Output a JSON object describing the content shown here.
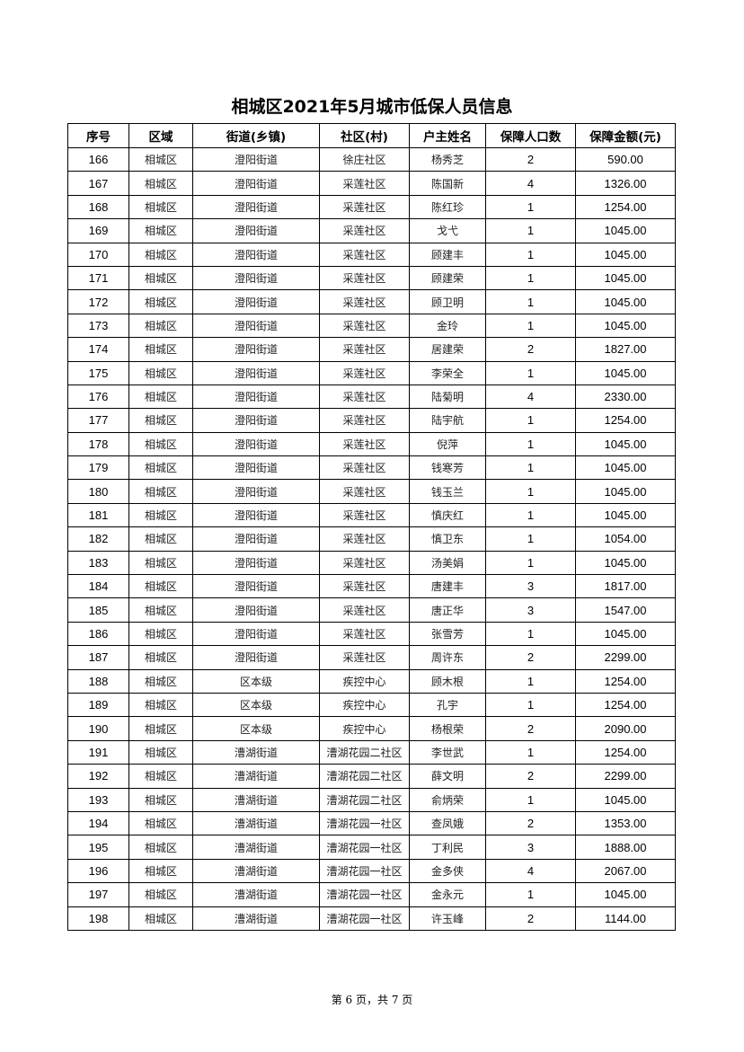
{
  "title": "相城区2021年5月城市低保人员信息",
  "columns": [
    "序号",
    "区域",
    "街道(乡镇)",
    "社区(村)",
    "户主姓名",
    "保障人口数",
    "保障金额(元)"
  ],
  "rows": [
    [
      "166",
      "相城区",
      "澄阳街道",
      "徐庄社区",
      "杨秀芝",
      "2",
      "590.00"
    ],
    [
      "167",
      "相城区",
      "澄阳街道",
      "采莲社区",
      "陈国新",
      "4",
      "1326.00"
    ],
    [
      "168",
      "相城区",
      "澄阳街道",
      "采莲社区",
      "陈红珍",
      "1",
      "1254.00"
    ],
    [
      "169",
      "相城区",
      "澄阳街道",
      "采莲社区",
      "戈弋",
      "1",
      "1045.00"
    ],
    [
      "170",
      "相城区",
      "澄阳街道",
      "采莲社区",
      "顾建丰",
      "1",
      "1045.00"
    ],
    [
      "171",
      "相城区",
      "澄阳街道",
      "采莲社区",
      "顾建荣",
      "1",
      "1045.00"
    ],
    [
      "172",
      "相城区",
      "澄阳街道",
      "采莲社区",
      "顾卫明",
      "1",
      "1045.00"
    ],
    [
      "173",
      "相城区",
      "澄阳街道",
      "采莲社区",
      "金玲",
      "1",
      "1045.00"
    ],
    [
      "174",
      "相城区",
      "澄阳街道",
      "采莲社区",
      "居建荣",
      "2",
      "1827.00"
    ],
    [
      "175",
      "相城区",
      "澄阳街道",
      "采莲社区",
      "李荣全",
      "1",
      "1045.00"
    ],
    [
      "176",
      "相城区",
      "澄阳街道",
      "采莲社区",
      "陆菊明",
      "4",
      "2330.00"
    ],
    [
      "177",
      "相城区",
      "澄阳街道",
      "采莲社区",
      "陆宇航",
      "1",
      "1254.00"
    ],
    [
      "178",
      "相城区",
      "澄阳街道",
      "采莲社区",
      "倪萍",
      "1",
      "1045.00"
    ],
    [
      "179",
      "相城区",
      "澄阳街道",
      "采莲社区",
      "钱寒芳",
      "1",
      "1045.00"
    ],
    [
      "180",
      "相城区",
      "澄阳街道",
      "采莲社区",
      "钱玉兰",
      "1",
      "1045.00"
    ],
    [
      "181",
      "相城区",
      "澄阳街道",
      "采莲社区",
      "慎庆红",
      "1",
      "1045.00"
    ],
    [
      "182",
      "相城区",
      "澄阳街道",
      "采莲社区",
      "慎卫东",
      "1",
      "1054.00"
    ],
    [
      "183",
      "相城区",
      "澄阳街道",
      "采莲社区",
      "汤美娟",
      "1",
      "1045.00"
    ],
    [
      "184",
      "相城区",
      "澄阳街道",
      "采莲社区",
      "唐建丰",
      "3",
      "1817.00"
    ],
    [
      "185",
      "相城区",
      "澄阳街道",
      "采莲社区",
      "唐正华",
      "3",
      "1547.00"
    ],
    [
      "186",
      "相城区",
      "澄阳街道",
      "采莲社区",
      "张雪芳",
      "1",
      "1045.00"
    ],
    [
      "187",
      "相城区",
      "澄阳街道",
      "采莲社区",
      "周许东",
      "2",
      "2299.00"
    ],
    [
      "188",
      "相城区",
      "区本级",
      "疾控中心",
      "顾木根",
      "1",
      "1254.00"
    ],
    [
      "189",
      "相城区",
      "区本级",
      "疾控中心",
      "孔宇",
      "1",
      "1254.00"
    ],
    [
      "190",
      "相城区",
      "区本级",
      "疾控中心",
      "杨根荣",
      "2",
      "2090.00"
    ],
    [
      "191",
      "相城区",
      "漕湖街道",
      "漕湖花园二社区",
      "李世武",
      "1",
      "1254.00"
    ],
    [
      "192",
      "相城区",
      "漕湖街道",
      "漕湖花园二社区",
      "薛文明",
      "2",
      "2299.00"
    ],
    [
      "193",
      "相城区",
      "漕湖街道",
      "漕湖花园二社区",
      "俞炳荣",
      "1",
      "1045.00"
    ],
    [
      "194",
      "相城区",
      "漕湖街道",
      "漕湖花园一社区",
      "查凤娥",
      "2",
      "1353.00"
    ],
    [
      "195",
      "相城区",
      "漕湖街道",
      "漕湖花园一社区",
      "丁利民",
      "3",
      "1888.00"
    ],
    [
      "196",
      "相城区",
      "漕湖街道",
      "漕湖花园一社区",
      "金多侠",
      "4",
      "2067.00"
    ],
    [
      "197",
      "相城区",
      "漕湖街道",
      "漕湖花园一社区",
      "金永元",
      "1",
      "1045.00"
    ],
    [
      "198",
      "相城区",
      "漕湖街道",
      "漕湖花园一社区",
      "许玉峰",
      "2",
      "1144.00"
    ]
  ],
  "footer": "第 6 页，共 7 页"
}
